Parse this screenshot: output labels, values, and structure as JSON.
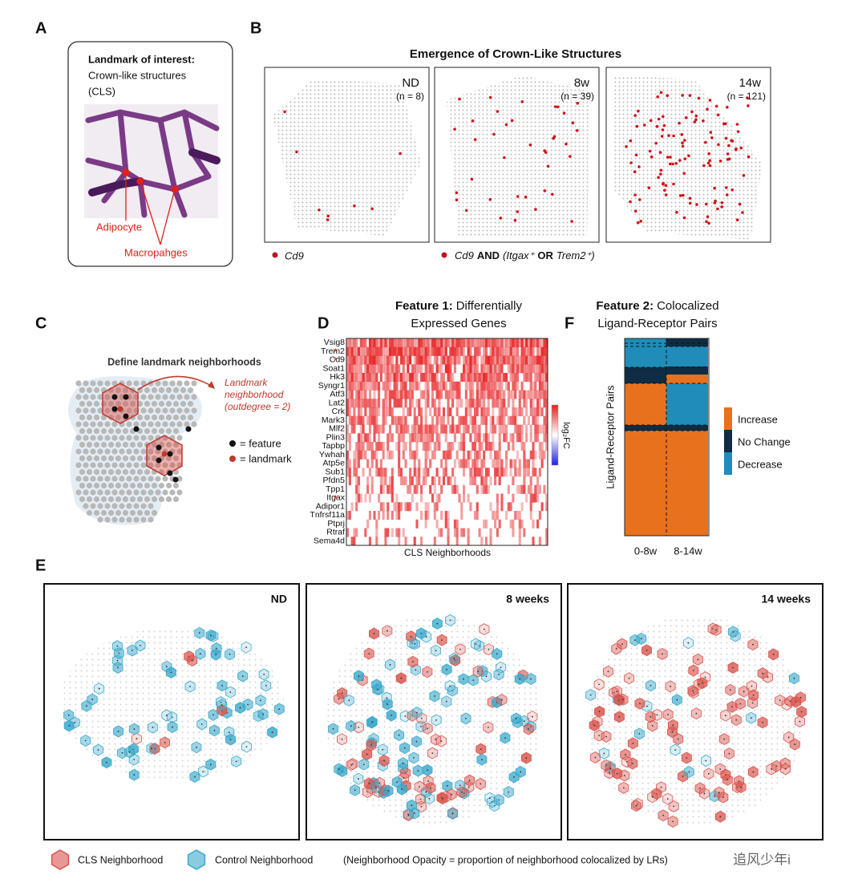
{
  "panel_a": {
    "label": "A",
    "title": "Landmark of interest:",
    "lines": [
      "Crown-like structures",
      "(CLS)"
    ],
    "annotations": [
      "Adipocyte",
      "Macropahges"
    ]
  },
  "panel_b": {
    "label": "B",
    "title": "Emergence of Crown-Like Structures",
    "images": [
      {
        "label": "ND",
        "n": "(n = 8)"
      },
      {
        "label": "8w",
        "n": "(n = 39)"
      },
      {
        "label": "14w",
        "n": "(n = 121)"
      }
    ],
    "legend": [
      {
        "gene": "Cd9"
      },
      {
        "gene": "Cd9",
        "op1": "AND",
        "gene2": "(Itgax⁺",
        "op2": "OR",
        "gene3": "Trem2⁺)"
      }
    ]
  },
  "panel_c": {
    "label": "C",
    "title": "Define landmark neighborhoods",
    "annotation": [
      "Landmark",
      "neighborhood",
      "(outdegree = 2)"
    ],
    "legend": [
      "= feature",
      "= landmark"
    ]
  },
  "panel_d": {
    "label": "D",
    "title_bold": "Feature 1:",
    "title_rest": "Differentially",
    "title_line2": "Expressed Genes",
    "genes": [
      "Vsig8",
      "Trem2",
      "Cd9",
      "Soat1",
      "Hk3",
      "Syngr1",
      "Atf3",
      "Lat2",
      "Crk",
      "Mark3",
      "Mlf2",
      "Plin3",
      "Tapbp",
      "Ywhah",
      "Atp5e",
      "Sub1",
      "Pfdn5",
      "Tpp1",
      "Itgax",
      "Adipor1",
      "Tnfrsf11a",
      "Ptprj",
      "Rtraf",
      "Sema4d"
    ],
    "starred": [
      "Trem2",
      "Cd9",
      "Itgax"
    ],
    "star": "*",
    "colorbar_label": "log₂FC",
    "x_label": "CLS Neighborhoods"
  },
  "panel_f": {
    "label": "F",
    "title_bold": "Feature 2:",
    "title_rest": "Colocalized",
    "title_line2": "Ligand-Receptor Pairs",
    "y_label": "Ligand-Receptor Pairs",
    "columns": [
      "0-8w",
      "8-14w"
    ],
    "legend": [
      {
        "name": "Increase",
        "color": "#e8711e"
      },
      {
        "name": "No Change",
        "color": "#0f2c44"
      },
      {
        "name": "Decrease",
        "color": "#1f8db8"
      }
    ]
  },
  "panel_e": {
    "label": "E",
    "panels": [
      "ND",
      "8 weeks",
      "14 weeks"
    ],
    "legend": [
      {
        "name": "CLS Neighborhood",
        "color": "#d9544d"
      },
      {
        "name": "Control Neighborhood",
        "color": "#3aa9cc"
      }
    ],
    "note": "(Neighborhood Opacity = proportion of neighborhood colocalized by LRs)"
  },
  "watermark": "追风少年i"
}
